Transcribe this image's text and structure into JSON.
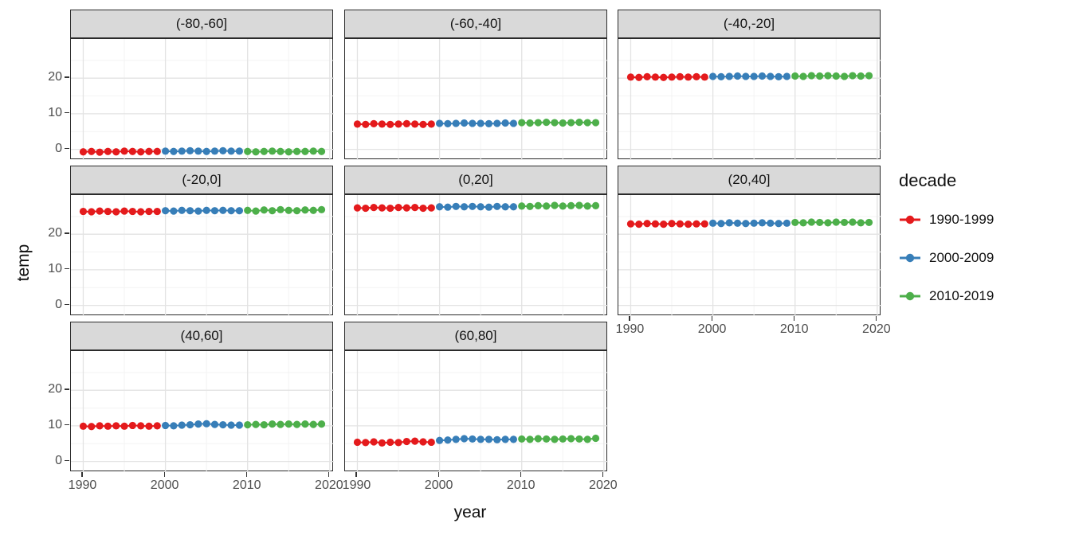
{
  "axes": {
    "x_title": "year",
    "y_title": "temp"
  },
  "legend": {
    "title": "decade"
  },
  "chart_data": {
    "type": "line",
    "title": "",
    "xlabel": "year",
    "ylabel": "temp",
    "legend_position": "right",
    "grid": true,
    "x_ticks": [
      1990,
      2000,
      2010,
      2020
    ],
    "x_minor": [
      1995,
      2005,
      2015
    ],
    "y_ticks": [
      0,
      10,
      20
    ],
    "y_minor": [
      5,
      15,
      25
    ],
    "xlim": [
      1988.5,
      2020.5
    ],
    "ylim": [
      -3,
      31
    ],
    "years": [
      1990,
      1991,
      1992,
      1993,
      1994,
      1995,
      1996,
      1997,
      1998,
      1999,
      2000,
      2001,
      2002,
      2003,
      2004,
      2005,
      2006,
      2007,
      2008,
      2009,
      2010,
      2011,
      2012,
      2013,
      2014,
      2015,
      2016,
      2017,
      2018,
      2019
    ],
    "decades": [
      {
        "name": "1990-1999",
        "start": 1990,
        "end": 1999,
        "color": "#E41A1C"
      },
      {
        "name": "2000-2009",
        "start": 2000,
        "end": 2009,
        "color": "#377EB8"
      },
      {
        "name": "2010-2019",
        "start": 2010,
        "end": 2019,
        "color": "#4DAF4A"
      }
    ],
    "facets": [
      {
        "label": "(-80,-60]",
        "values": [
          -0.7,
          -0.6,
          -0.8,
          -0.6,
          -0.7,
          -0.5,
          -0.6,
          -0.7,
          -0.6,
          -0.6,
          -0.5,
          -0.6,
          -0.5,
          -0.4,
          -0.5,
          -0.6,
          -0.5,
          -0.4,
          -0.5,
          -0.5,
          -0.6,
          -0.7,
          -0.6,
          -0.5,
          -0.6,
          -0.7,
          -0.6,
          -0.6,
          -0.5,
          -0.6
        ]
      },
      {
        "label": "(-60,-40]",
        "values": [
          7.1,
          7.0,
          7.2,
          7.1,
          7.0,
          7.1,
          7.2,
          7.1,
          7.0,
          7.1,
          7.3,
          7.2,
          7.3,
          7.4,
          7.3,
          7.3,
          7.2,
          7.3,
          7.4,
          7.3,
          7.5,
          7.4,
          7.5,
          7.6,
          7.5,
          7.4,
          7.5,
          7.6,
          7.5,
          7.5
        ]
      },
      {
        "label": "(-40,-20]",
        "values": [
          20.3,
          20.2,
          20.4,
          20.3,
          20.2,
          20.3,
          20.4,
          20.3,
          20.4,
          20.3,
          20.5,
          20.4,
          20.5,
          20.6,
          20.5,
          20.5,
          20.6,
          20.5,
          20.4,
          20.5,
          20.6,
          20.5,
          20.7,
          20.6,
          20.7,
          20.6,
          20.5,
          20.7,
          20.6,
          20.7
        ]
      },
      {
        "label": "(-20,0]",
        "values": [
          26.4,
          26.3,
          26.5,
          26.4,
          26.3,
          26.5,
          26.4,
          26.3,
          26.4,
          26.4,
          26.6,
          26.5,
          26.7,
          26.6,
          26.5,
          26.7,
          26.6,
          26.7,
          26.6,
          26.6,
          26.7,
          26.5,
          26.8,
          26.6,
          26.9,
          26.7,
          26.6,
          26.8,
          26.7,
          26.9
        ]
      },
      {
        "label": "(0,20]",
        "values": [
          27.4,
          27.3,
          27.5,
          27.4,
          27.3,
          27.5,
          27.4,
          27.5,
          27.3,
          27.4,
          27.7,
          27.6,
          27.8,
          27.7,
          27.8,
          27.7,
          27.6,
          27.8,
          27.7,
          27.7,
          27.9,
          27.8,
          28.0,
          27.9,
          28.1,
          27.9,
          28.0,
          28.1,
          27.9,
          28.0
        ]
      },
      {
        "label": "(20,40]",
        "values": [
          22.9,
          22.8,
          23.0,
          22.9,
          22.8,
          23.0,
          22.9,
          22.8,
          22.9,
          22.9,
          23.1,
          23.0,
          23.2,
          23.1,
          23.0,
          23.1,
          23.2,
          23.1,
          23.0,
          23.1,
          23.3,
          23.2,
          23.4,
          23.3,
          23.2,
          23.4,
          23.3,
          23.4,
          23.2,
          23.3
        ]
      },
      {
        "label": "(40,60]",
        "values": [
          9.9,
          9.8,
          10.0,
          9.9,
          10.0,
          9.9,
          10.1,
          10.0,
          9.9,
          10.0,
          10.1,
          10.0,
          10.2,
          10.3,
          10.5,
          10.6,
          10.4,
          10.3,
          10.2,
          10.2,
          10.3,
          10.4,
          10.3,
          10.5,
          10.4,
          10.5,
          10.4,
          10.5,
          10.4,
          10.5
        ]
      },
      {
        "label": "(60,80]",
        "values": [
          5.4,
          5.3,
          5.5,
          5.2,
          5.4,
          5.3,
          5.6,
          5.7,
          5.5,
          5.4,
          5.9,
          6.0,
          6.2,
          6.4,
          6.3,
          6.2,
          6.2,
          6.1,
          6.2,
          6.2,
          6.3,
          6.2,
          6.4,
          6.3,
          6.2,
          6.3,
          6.4,
          6.3,
          6.2,
          6.5
        ]
      }
    ]
  }
}
